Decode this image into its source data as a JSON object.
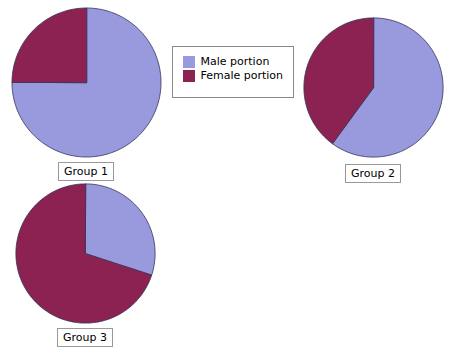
{
  "chart_data": [
    {
      "type": "pie",
      "title": "Group 1",
      "categories": [
        "Male portion",
        "Female portion"
      ],
      "values": [
        75,
        25
      ],
      "colors": [
        "#9999DD",
        "#8B2252"
      ],
      "legend": "top"
    },
    {
      "type": "pie",
      "title": "Group 2",
      "categories": [
        "Male portion",
        "Female portion"
      ],
      "values": [
        60,
        40
      ],
      "colors": [
        "#9999DD",
        "#8B2252"
      ]
    },
    {
      "type": "pie",
      "title": "Group 3",
      "categories": [
        "Male portion",
        "Female portion"
      ],
      "values": [
        30,
        70
      ],
      "colors": [
        "#9999DD",
        "#8B2252"
      ]
    }
  ]
}
